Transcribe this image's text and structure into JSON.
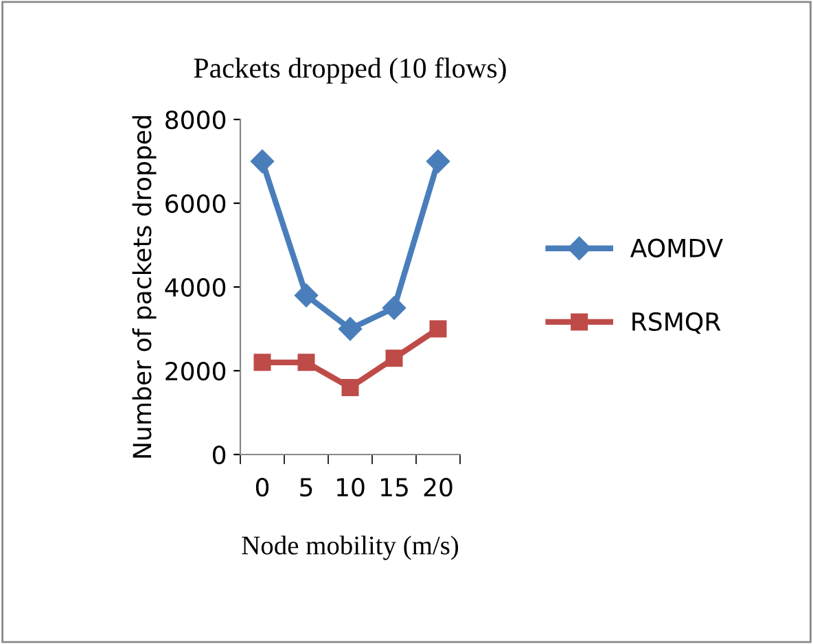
{
  "chart_data": {
    "type": "line",
    "title": "Packets dropped (10 flows)",
    "xlabel": "Node mobility (m/s)",
    "ylabel": "Number of packets dropped",
    "categories": [
      "0",
      "5",
      "10",
      "15",
      "20"
    ],
    "series": [
      {
        "name": "AOMDV",
        "color": "#4a7ebb",
        "marker": "diamond",
        "values": [
          7000,
          3800,
          3000,
          3500,
          7000
        ]
      },
      {
        "name": "RSMQR",
        "color": "#be4b48",
        "marker": "square",
        "values": [
          2200,
          2200,
          1600,
          2300,
          3000
        ]
      }
    ],
    "ylim": [
      0,
      8000
    ],
    "yticks": [
      0,
      2000,
      4000,
      6000,
      8000
    ],
    "grid": false,
    "legend": "right",
    "line_style": "solid"
  }
}
